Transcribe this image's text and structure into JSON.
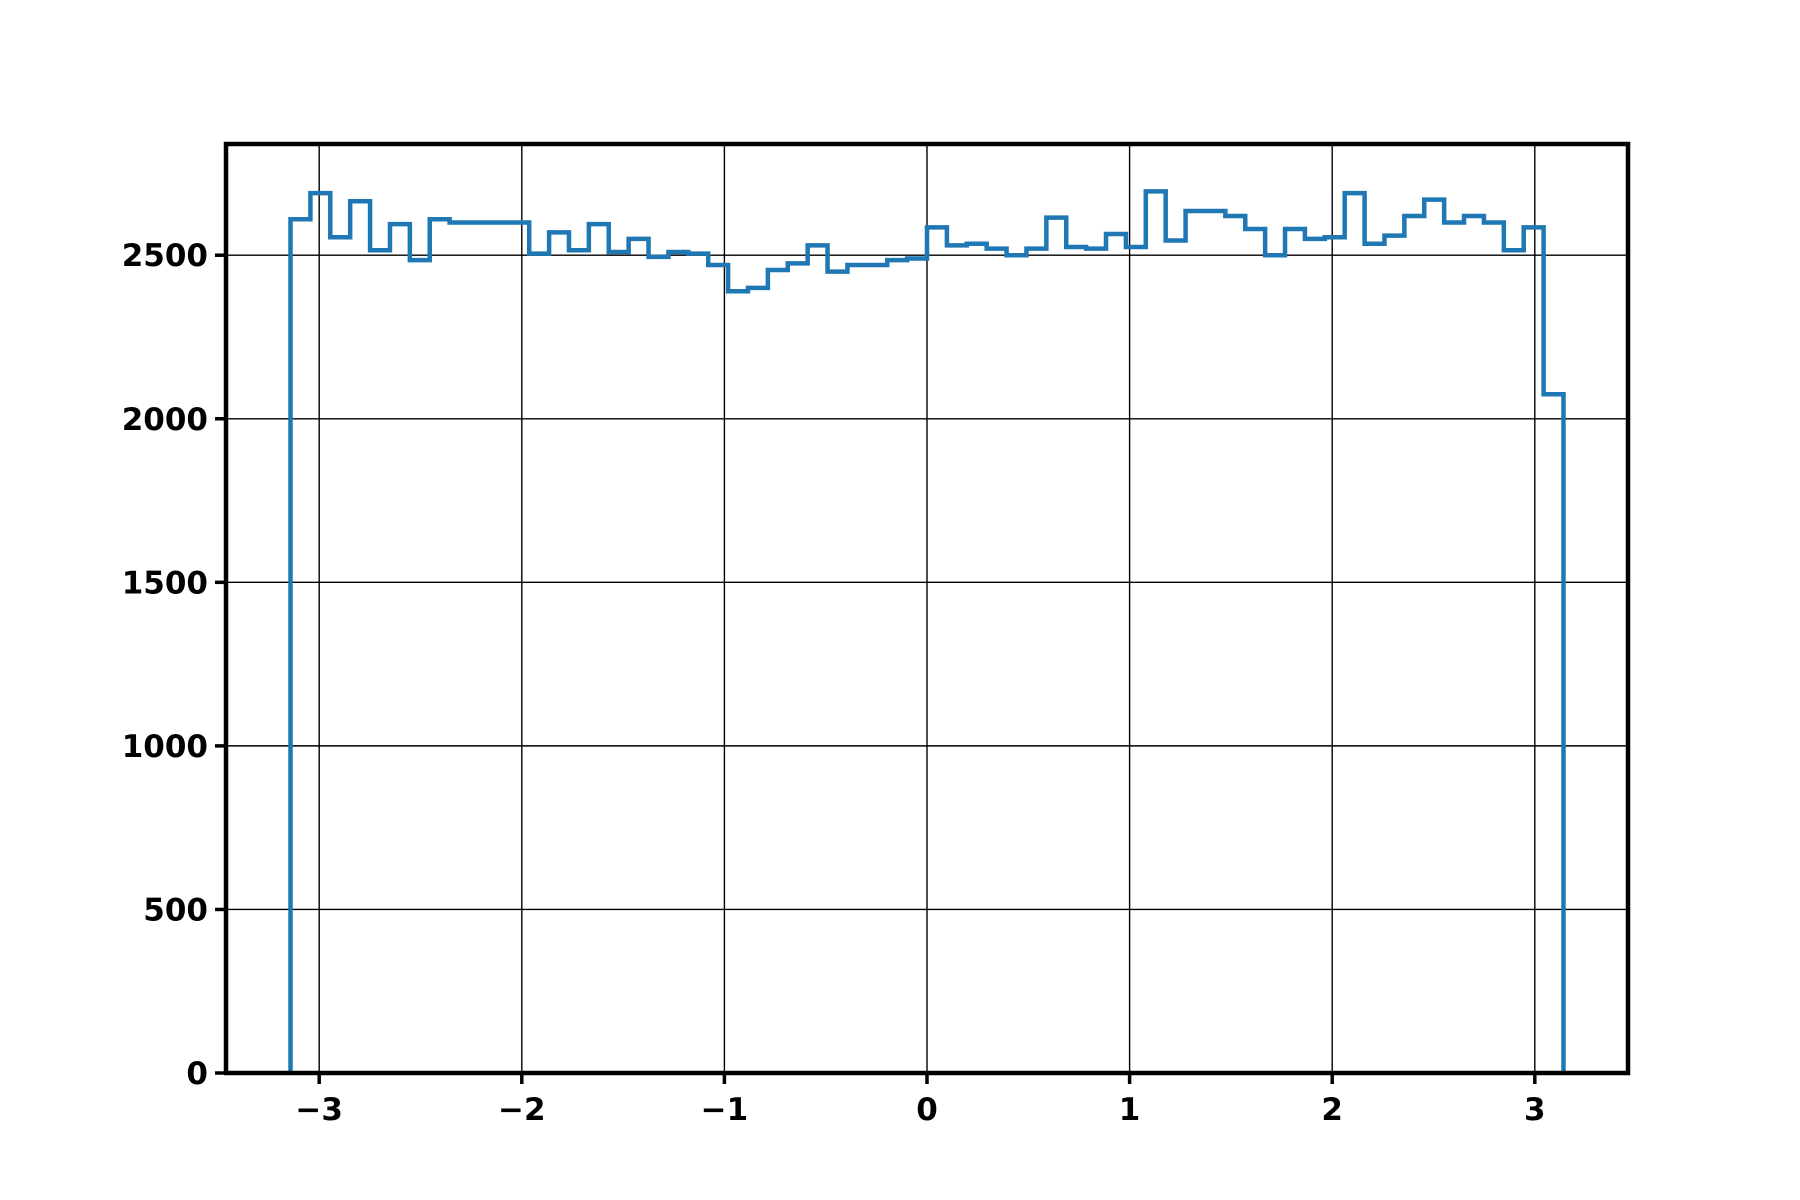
{
  "chart_data": {
    "type": "histogram",
    "histtype": "step",
    "title": "",
    "xlabel": "",
    "ylabel": "",
    "xlim": [
      -3.46,
      3.46
    ],
    "ylim": [
      0,
      2840
    ],
    "grid": true,
    "legend": "none",
    "colors": {
      "series": "#1f77b4",
      "axes": "#000000",
      "grid": "#000000",
      "background": "#ffffff"
    },
    "x_ticks": [
      {
        "value": -3,
        "label": "−3"
      },
      {
        "value": -2,
        "label": "−2"
      },
      {
        "value": -1,
        "label": "−1"
      },
      {
        "value": 0,
        "label": "0"
      },
      {
        "value": 1,
        "label": "1"
      },
      {
        "value": 2,
        "label": "2"
      },
      {
        "value": 3,
        "label": "3"
      }
    ],
    "y_ticks": [
      {
        "value": 0,
        "label": "0"
      },
      {
        "value": 500,
        "label": "500"
      },
      {
        "value": 1000,
        "label": "1000"
      },
      {
        "value": 1500,
        "label": "1500"
      },
      {
        "value": 2000,
        "label": "2000"
      },
      {
        "value": 2500,
        "label": "2500"
      }
    ],
    "bin_range": [
      -3.1416,
      3.1416
    ],
    "series": [
      {
        "values": [
          2610,
          2690,
          2555,
          2665,
          2515,
          2595,
          2485,
          2610,
          2600,
          2600,
          2600,
          2600,
          2505,
          2570,
          2515,
          2595,
          2510,
          2550,
          2495,
          2510,
          2505,
          2470,
          2390,
          2400,
          2455,
          2475,
          2530,
          2450,
          2470,
          2470,
          2485,
          2490,
          2585,
          2530,
          2535,
          2520,
          2500,
          2520,
          2615,
          2525,
          2520,
          2565,
          2525,
          2695,
          2545,
          2635,
          2635,
          2620,
          2580,
          2500,
          2580,
          2550,
          2555,
          2690,
          2535,
          2560,
          2620,
          2670,
          2600,
          2620,
          2600,
          2515,
          2585,
          2075
        ]
      }
    ]
  }
}
